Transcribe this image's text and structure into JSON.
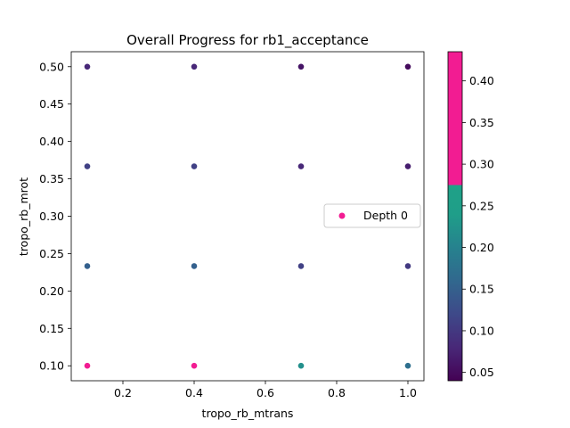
{
  "chart_data": {
    "type": "scatter",
    "title": "Overall Progress for rb1_acceptance",
    "xlabel": "tropo_rb_mtrans",
    "ylabel": "tropo_rb_mrot",
    "xlim": [
      0.055,
      1.045
    ],
    "ylim": [
      0.08,
      0.52
    ],
    "xticks": [
      "0.2",
      "0.4",
      "0.6",
      "0.8",
      "1.0"
    ],
    "xtick_values": [
      0.2,
      0.4,
      0.6,
      0.8,
      1.0
    ],
    "yticks": [
      "0.10",
      "0.15",
      "0.20",
      "0.25",
      "0.30",
      "0.35",
      "0.40",
      "0.45",
      "0.50"
    ],
    "ytick_values": [
      0.1,
      0.15,
      0.2,
      0.25,
      0.3,
      0.35,
      0.4,
      0.45,
      0.5
    ],
    "grid": false,
    "legend": {
      "placement": "center-right",
      "entries": [
        "Depth 0"
      ]
    },
    "series": [
      {
        "name": "Depth 0",
        "marker_color": "#f21c92",
        "points": [
          {
            "x": 0.1,
            "y": 0.5,
            "value": 0.08
          },
          {
            "x": 0.4,
            "y": 0.5,
            "value": 0.08
          },
          {
            "x": 0.7,
            "y": 0.5,
            "value": 0.06
          },
          {
            "x": 1.0,
            "y": 0.5,
            "value": 0.05
          },
          {
            "x": 0.1,
            "y": 0.3667,
            "value": 0.11
          },
          {
            "x": 0.4,
            "y": 0.3667,
            "value": 0.11
          },
          {
            "x": 0.7,
            "y": 0.3667,
            "value": 0.08
          },
          {
            "x": 1.0,
            "y": 0.3667,
            "value": 0.07
          },
          {
            "x": 0.1,
            "y": 0.2333,
            "value": 0.15
          },
          {
            "x": 0.4,
            "y": 0.2333,
            "value": 0.15
          },
          {
            "x": 0.7,
            "y": 0.2333,
            "value": 0.11
          },
          {
            "x": 1.0,
            "y": 0.2333,
            "value": 0.1
          },
          {
            "x": 0.1,
            "y": 0.1,
            "value": 0.43
          },
          {
            "x": 0.4,
            "y": 0.1,
            "value": 0.43
          },
          {
            "x": 0.7,
            "y": 0.1,
            "value": 0.22
          },
          {
            "x": 1.0,
            "y": 0.1,
            "value": 0.17
          }
        ]
      }
    ],
    "colorbar": {
      "range": [
        0.04,
        0.435
      ],
      "ticks": [
        "0.05",
        "0.10",
        "0.15",
        "0.20",
        "0.25",
        "0.30",
        "0.35",
        "0.40"
      ],
      "tick_values": [
        0.05,
        0.1,
        0.15,
        0.2,
        0.25,
        0.3,
        0.35,
        0.4
      ],
      "colormap_stops": [
        {
          "v": 0.04,
          "color": "#440154"
        },
        {
          "v": 0.08,
          "color": "#482878"
        },
        {
          "v": 0.12,
          "color": "#3e4989"
        },
        {
          "v": 0.16,
          "color": "#31688e"
        },
        {
          "v": 0.2,
          "color": "#26828e"
        },
        {
          "v": 0.24,
          "color": "#1f9e89"
        },
        {
          "v": 0.275,
          "color": "#1fa187"
        },
        {
          "v": 0.2751,
          "color": "#f21c92"
        },
        {
          "v": 0.435,
          "color": "#f21c92"
        }
      ]
    }
  }
}
